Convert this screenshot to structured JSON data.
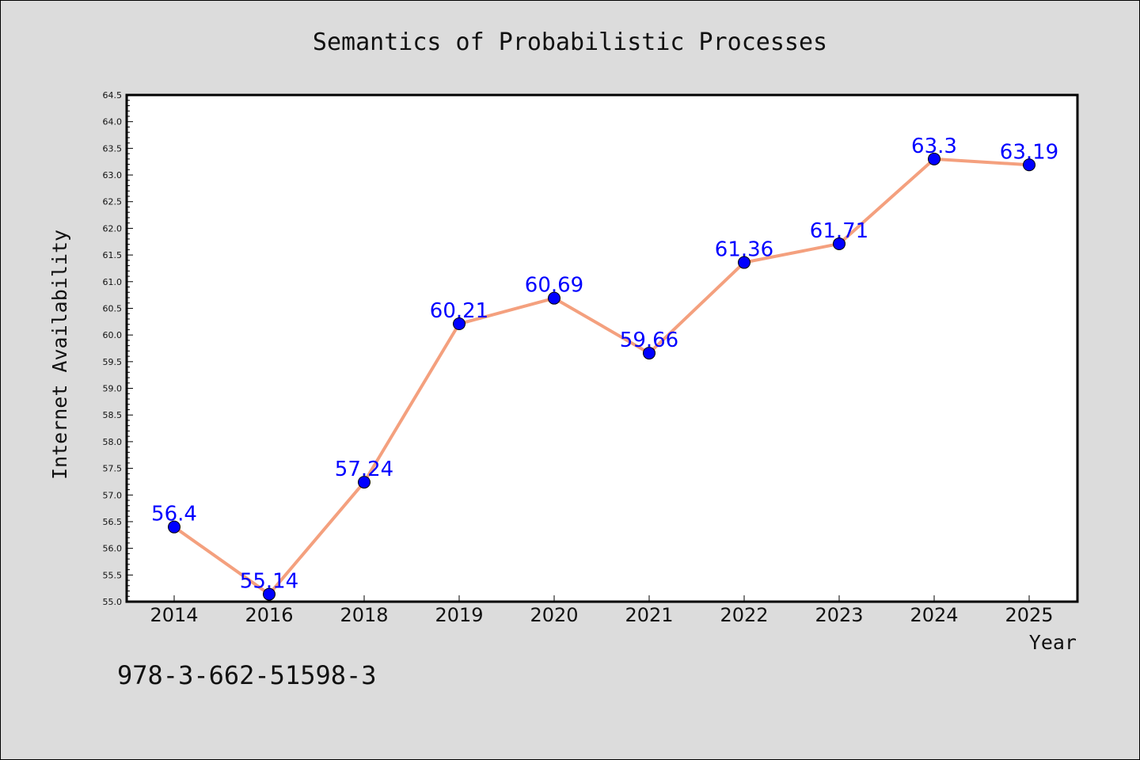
{
  "chart_data": {
    "type": "line",
    "title": "Semantics of Probabilistic Processes",
    "xlabel": "Year",
    "ylabel": "Internet Availability",
    "categories": [
      "2014",
      "2016",
      "2018",
      "2019",
      "2020",
      "2021",
      "2022",
      "2023",
      "2024",
      "2025"
    ],
    "series": [
      {
        "values": [
          56.4,
          55.14,
          57.24,
          60.21,
          60.69,
          59.66,
          61.36,
          61.71,
          63.3,
          63.19
        ],
        "labels": [
          "56.4",
          "55.14",
          "57.24",
          "60.21",
          "60.69",
          "59.66",
          "61.36",
          "61.71",
          "63.3",
          "63.19"
        ],
        "line_color": "#f4a07e",
        "marker_color": "#0000ff"
      }
    ],
    "ylim": [
      55.0,
      64.5
    ],
    "yticks": [
      "55.0",
      "55.5",
      "56.0",
      "56.5",
      "57.0",
      "57.5",
      "58.0",
      "58.5",
      "59.0",
      "59.5",
      "60.0",
      "60.5",
      "61.0",
      "61.5",
      "62.0",
      "62.5",
      "63.0",
      "63.5",
      "64.0",
      "64.5"
    ],
    "grid": false,
    "data_label_color": "#0000ff"
  },
  "footer": {
    "isbn": "978-3-662-51598-3"
  },
  "colors": {
    "background": "#dcdcdc",
    "plot_background": "#ffffff",
    "axis": "#000000"
  }
}
